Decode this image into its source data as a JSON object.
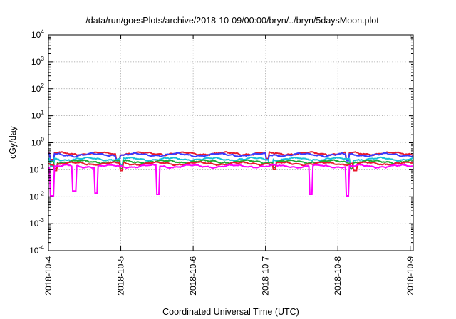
{
  "chart_data": {
    "type": "line",
    "title": "/data/run/goesPlots/archive/2018-10-09/00:00/bryn/../bryn/5daysMoon.plot",
    "xlabel": "Coordinated Universal Time (UTC)",
    "ylabel": "cGy/day",
    "yscale": "log",
    "ylim": [
      0.0001,
      10000
    ],
    "y_ticks": [
      {
        "base": "10",
        "exp": "-4"
      },
      {
        "base": "10",
        "exp": "-3"
      },
      {
        "base": "10",
        "exp": "-2"
      },
      {
        "base": "10",
        "exp": "-1"
      },
      {
        "base": "10",
        "exp": "0"
      },
      {
        "base": "10",
        "exp": "1"
      },
      {
        "base": "10",
        "exp": "2"
      },
      {
        "base": "10",
        "exp": "3"
      },
      {
        "base": "10",
        "exp": "4"
      }
    ],
    "xlim": [
      "2018-10-04 00:00",
      "2018-10-09 01:00"
    ],
    "x_ticks": [
      "2018-10-4",
      "2018-10-5",
      "2018-10-6",
      "2018-10-7",
      "2018-10-8",
      "2018-10-9"
    ],
    "grid": true,
    "legend": "none",
    "series": [
      {
        "color": "#e8192c",
        "base_value": 0.4,
        "dips": [
          [
            0.01,
            0.6
          ],
          [
            0.19,
            0.6
          ],
          [
            0.6,
            0.65
          ],
          [
            0.82,
            0.6
          ]
        ]
      },
      {
        "color": "#3a3aff",
        "base_value": 0.36,
        "dips": [
          [
            0.01,
            0.6
          ],
          [
            0.19,
            0.6
          ],
          [
            0.6,
            0.65
          ],
          [
            0.82,
            0.6
          ]
        ]
      },
      {
        "color": "#18c0d8",
        "base_value": 0.25,
        "dips": [
          [
            0.01,
            0.55
          ],
          [
            0.2,
            0.6
          ],
          [
            0.61,
            0.6
          ],
          [
            0.83,
            0.55
          ]
        ]
      },
      {
        "color": "#22a833",
        "base_value": 0.2,
        "dips": [
          [
            0.02,
            0.55
          ],
          [
            0.2,
            0.55
          ],
          [
            0.62,
            0.6
          ],
          [
            0.83,
            0.55
          ]
        ]
      },
      {
        "color": "#e8192c",
        "base_value": 0.17,
        "dips": [
          [
            0.02,
            0.55
          ],
          [
            0.2,
            0.55
          ],
          [
            0.62,
            0.6
          ],
          [
            0.84,
            0.55
          ]
        ]
      },
      {
        "color": "#ff00ff",
        "base_value": 0.135,
        "dips": [
          [
            0.01,
            0.08
          ],
          [
            0.07,
            0.12
          ],
          [
            0.13,
            0.1
          ],
          [
            0.3,
            0.09
          ],
          [
            0.72,
            0.09
          ],
          [
            0.82,
            0.08
          ]
        ]
      }
    ]
  }
}
